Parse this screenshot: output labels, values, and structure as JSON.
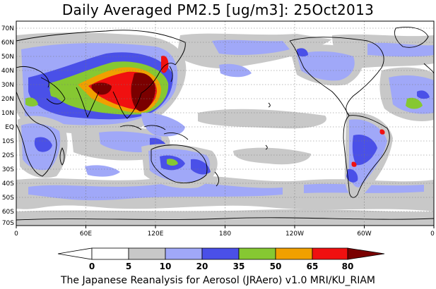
{
  "title": "Daily Averaged PM2.5 [ug/m3]: 25Oct2013",
  "footer": "The Japanese Reanalysis for Aerosol (JRAero) v1.0 MRI/KU_RIAM",
  "lat_labels": [
    "70N",
    "60N",
    "50N",
    "40N",
    "30N",
    "20N",
    "10N",
    "EQ",
    "10S",
    "20S",
    "30S",
    "40S",
    "50S",
    "60S",
    "70S"
  ],
  "lon_labels": [
    "0",
    "60E",
    "120E",
    "180",
    "120W",
    "60W",
    "0"
  ],
  "colorbar": {
    "levels": [
      "0",
      "5",
      "10",
      "20",
      "35",
      "50",
      "65",
      "80"
    ],
    "colors": [
      "#ffffff",
      "#c8c8c8",
      "#a0a8f8",
      "#4a50e8",
      "#86c832",
      "#f0a000",
      "#f01010",
      "#7a0000"
    ]
  },
  "legend_fills": {
    "white": "#ffffff",
    "gray": "#c8c8c8",
    "lightblue": "#a0a8f8",
    "blue": "#4a50e8",
    "green": "#86c832",
    "orange": "#f0a000",
    "red": "#f01010",
    "darkred": "#7a0000"
  }
}
